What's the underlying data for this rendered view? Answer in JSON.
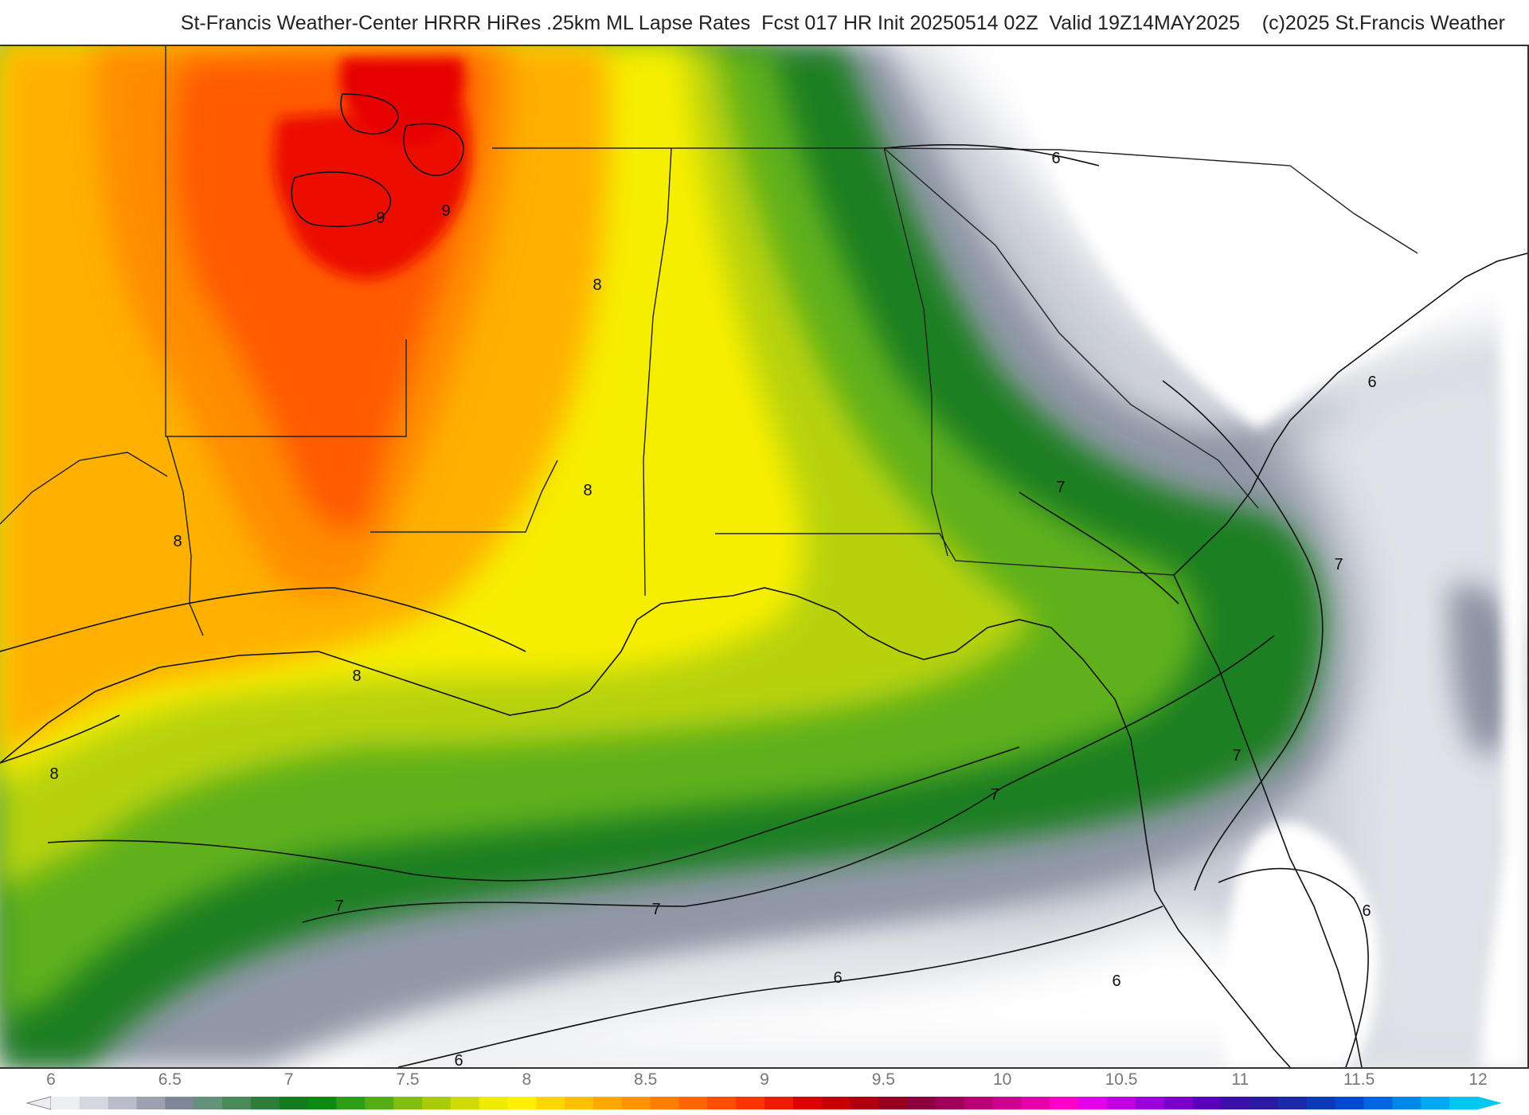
{
  "title": "St-Francis Weather-Center HRRR HiRes .25km ML Lapse Rates  Fcst 017 HR Init 20250514 02Z  Valid 19Z14MAY2025    (c)2025 St.Francis Weather",
  "contour_labels": [
    "9",
    "9",
    "8",
    "8",
    "8",
    "8",
    "8",
    "7",
    "7",
    "7",
    "7",
    "7",
    "7",
    "6",
    "6",
    "6",
    "6",
    "6",
    "6"
  ],
  "colorbar": {
    "ticks": [
      "6",
      "6.5",
      "7",
      "7.5",
      "8",
      "8.5",
      "9",
      "9.5",
      "10",
      "10.5",
      "11",
      "11.5",
      "12"
    ],
    "colors": [
      "#eceef2",
      "#d3d7df",
      "#b8bdc9",
      "#9aa1b0",
      "#7e8797",
      "#62927a",
      "#4a8a58",
      "#2e7e3a",
      "#157a1f",
      "#0e8a12",
      "#2e9d17",
      "#54ad17",
      "#7fbe12",
      "#a8cc0a",
      "#cfdb02",
      "#f0ec00",
      "#fff100",
      "#ffd700",
      "#ffc000",
      "#ffa800",
      "#ff9400",
      "#ff7e00",
      "#ff6600",
      "#ff4d00",
      "#ff3300",
      "#f01a00",
      "#e00000",
      "#c80000",
      "#b00010",
      "#980020",
      "#8c0040",
      "#a0005a",
      "#b80074",
      "#d0008e",
      "#e800a8",
      "#ff00c8",
      "#e600e6",
      "#c000e0",
      "#9a00d8",
      "#7a00c8",
      "#5a00b8",
      "#3a10a8",
      "#2a1aa0",
      "#1a2aa8",
      "#0a3ab8",
      "#004ad0",
      "#0066e0",
      "#0088e8",
      "#00aaf0",
      "#00c8f0"
    ]
  }
}
